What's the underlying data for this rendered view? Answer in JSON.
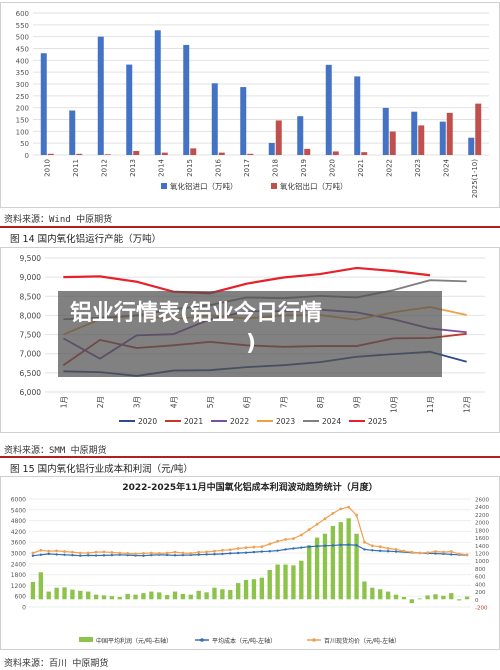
{
  "overlay": {
    "title_line1": "铝业行情表(铝业今日行情",
    "title_line2": ")"
  },
  "source1": "资料来源：Wind 中原期货",
  "fig14_title": "图 14 国内氧化铝运行产能（万吨）",
  "source2": "资料来源：SMM 中原期货",
  "fig15_title": "图 15 国内氧化铝行业成本和利润（元/吨）",
  "source3": "资料来源：百川 中原期货",
  "chart_data": [
    {
      "type": "bar",
      "categories": [
        "2010",
        "2011",
        "2012",
        "2013",
        "2014",
        "2015",
        "2016",
        "2017",
        "2018",
        "2019",
        "2020",
        "2021",
        "2022",
        "2023",
        "2024",
        "2025(1-10)"
      ],
      "series": [
        {
          "name": "氧化铝进口（万吨）",
          "color": "#4472c4",
          "values": [
            430,
            188,
            500,
            382,
            527,
            465,
            303,
            287,
            51,
            164,
            381,
            332,
            199,
            183,
            141,
            73
          ]
        },
        {
          "name": "氧化铝出口（万吨）",
          "color": "#c0504d",
          "values": [
            5,
            5,
            3,
            17,
            10,
            28,
            10,
            5,
            146,
            26,
            15,
            12,
            99,
            125,
            178,
            217
          ]
        }
      ],
      "yticks": [
        "0",
        "50",
        "100",
        "150",
        "200",
        "250",
        "300",
        "350",
        "400",
        "450",
        "500",
        "550",
        "600"
      ],
      "ylim": [
        0,
        600
      ]
    },
    {
      "type": "line",
      "title": "",
      "x": [
        "1月",
        "2月",
        "3月",
        "4月",
        "5月",
        "6月",
        "7月",
        "8月",
        "9月",
        "10月",
        "11月",
        "12月"
      ],
      "yticks": [
        "6,000",
        "6,500",
        "7,000",
        "7,500",
        "8,000",
        "8,500",
        "9,000",
        "9,500"
      ],
      "ylim": [
        6000,
        9500
      ],
      "series": [
        {
          "name": "2020",
          "color": "#2f4b8c",
          "values": [
            6540,
            6520,
            6420,
            6560,
            6570,
            6650,
            6700,
            6780,
            6920,
            6990,
            7050,
            6790
          ]
        },
        {
          "name": "2021",
          "color": "#c0392b",
          "values": [
            6700,
            7360,
            7150,
            7220,
            7310,
            7220,
            7180,
            7200,
            7200,
            7400,
            7410,
            7520
          ]
        },
        {
          "name": "2022",
          "color": "#7b4fa0",
          "values": [
            7400,
            6870,
            7480,
            7510,
            7900,
            8110,
            8110,
            8150,
            8080,
            7900,
            7660,
            7560
          ]
        },
        {
          "name": "2023",
          "color": "#f0a040",
          "values": [
            7500,
            7900,
            8000,
            7900,
            8000,
            7920,
            8000,
            8010,
            7890,
            8080,
            8220,
            8010
          ]
        },
        {
          "name": "2024",
          "color": "#7f7f7f",
          "values": [
            7900,
            7940,
            8000,
            8160,
            8270,
            8470,
            8450,
            8510,
            8470,
            8660,
            8920,
            8890
          ]
        },
        {
          "name": "2025",
          "color": "#e8202a",
          "values": [
            9000,
            9020,
            8880,
            8620,
            8580,
            8830,
            8990,
            9080,
            9240,
            9160,
            9050,
            null
          ]
        }
      ]
    },
    {
      "type": "bar",
      "title": "2022-2025年11月中国氧化铝成本利润波动趋势统计（月度）",
      "yticks_left": [
        "0",
        "600",
        "1200",
        "1800",
        "2400",
        "3000",
        "3600",
        "4200",
        "4800",
        "5400",
        "6000"
      ],
      "yticks_right": [
        "-200",
        "0",
        "200",
        "400",
        "600",
        "800",
        "1000",
        "1200",
        "1400",
        "1600",
        "1800",
        "2000",
        "2200",
        "2400",
        "2600"
      ],
      "ylim_left": [
        0,
        6000
      ],
      "ylim_right": [
        -200,
        2600
      ],
      "series": [
        {
          "name": "中国平均利润（元/吨-右轴）",
          "color": "#8dc24b",
          "values": [
            450,
            700,
            200,
            300,
            310,
            250,
            220,
            200,
            120,
            100,
            80,
            60,
            140,
            120,
            160,
            200,
            180,
            110,
            200,
            140,
            120,
            220,
            180,
            300,
            260,
            240,
            420,
            500,
            520,
            560,
            760,
            900,
            900,
            880,
            1000,
            1400,
            1600,
            1700,
            1900,
            2000,
            2100,
            1700,
            460,
            300,
            260,
            200,
            120,
            60,
            -100,
            20,
            100,
            130,
            90,
            160,
            -30,
            70
          ]
        },
        {
          "name": "平均成本（元/吨-左轴）",
          "color": "#2f6fb5",
          "values": [
            2850,
            2900,
            2950,
            2920,
            2900,
            2880,
            2850,
            2870,
            2860,
            2870,
            2880,
            2900,
            2880,
            2860,
            2850,
            2880,
            2900,
            2890,
            2870,
            2880,
            2890,
            2910,
            2920,
            2930,
            2950,
            2980,
            3000,
            3020,
            3050,
            3080,
            3100,
            3130,
            3200,
            3250,
            3300,
            3350,
            3380,
            3400,
            3420,
            3450,
            3460,
            3430,
            3200,
            3150,
            3120,
            3100,
            3080,
            3050,
            3020,
            3000,
            2980,
            2970,
            2950,
            2920,
            2900,
            2880
          ]
        },
        {
          "name": "百川现货均价（元/吨-左轴）",
          "color": "#f0a050",
          "values": [
            3000,
            3150,
            3100,
            3120,
            3080,
            3050,
            3000,
            3000,
            3050,
            3060,
            3030,
            3000,
            2980,
            2950,
            2980,
            3000,
            2980,
            3000,
            3050,
            3000,
            2980,
            3050,
            3060,
            3100,
            3150,
            3180,
            3250,
            3300,
            3330,
            3350,
            3500,
            3650,
            3750,
            3800,
            4000,
            4300,
            4600,
            4900,
            5200,
            5450,
            5550,
            5100,
            3600,
            3400,
            3350,
            3250,
            3200,
            3100,
            3050,
            3000,
            3020,
            3080,
            3050,
            3080,
            2950,
            2900
          ]
        }
      ]
    }
  ]
}
